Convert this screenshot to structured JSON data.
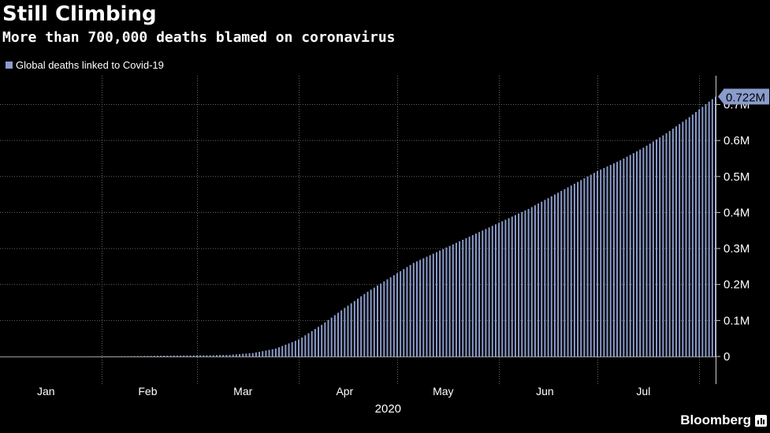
{
  "header": {
    "title": "Still Climbing",
    "subtitle": "More than 700,000 deaths blamed on coronavirus"
  },
  "colors": {
    "bar": "#8a9ccc",
    "grid": "#666666",
    "text": "#ffffff",
    "background": "#000000"
  },
  "chart_data": {
    "type": "bar",
    "title": "Still Climbing",
    "subtitle": "More than 700,000 deaths blamed on coronavirus",
    "xlabel": "2020",
    "ylabel": "",
    "y_axis_side": "right",
    "ylim": [
      0,
      0.78
    ],
    "y_unit": "M",
    "grid": true,
    "legend": {
      "position": "top-left",
      "entries": [
        "Global deaths linked to Covid-19"
      ]
    },
    "x_range": [
      "2020-01-01",
      "2020-08-06"
    ],
    "x_tick_labels": [
      {
        "label": "Jan",
        "date": "2020-01-15"
      },
      {
        "label": "Feb",
        "date": "2020-02-15"
      },
      {
        "label": "Mar",
        "date": "2020-03-15"
      },
      {
        "label": "Apr",
        "date": "2020-04-15"
      },
      {
        "label": "May",
        "date": "2020-05-15"
      },
      {
        "label": "Jun",
        "date": "2020-06-15"
      },
      {
        "label": "Jul",
        "date": "2020-07-15"
      }
    ],
    "x_gridlines": [
      "2020-02-01",
      "2020-03-01",
      "2020-04-01",
      "2020-05-01",
      "2020-06-01",
      "2020-07-01",
      "2020-08-01"
    ],
    "y_ticks": [
      {
        "value": 0,
        "label": "0"
      },
      {
        "value": 0.1,
        "label": "0.1M"
      },
      {
        "value": 0.2,
        "label": "0.2M"
      },
      {
        "value": 0.3,
        "label": "0.3M"
      },
      {
        "value": 0.4,
        "label": "0.4M"
      },
      {
        "value": 0.5,
        "label": "0.5M"
      },
      {
        "value": 0.6,
        "label": "0.6M"
      },
      {
        "value": 0.7,
        "label": "0.7M"
      }
    ],
    "last_value_label": "0.722M",
    "series": [
      {
        "name": "Global deaths linked to Covid-19",
        "color": "#8a9ccc",
        "points": [
          [
            "2020-01-22",
            0.0
          ],
          [
            "2020-01-29",
            0.0001
          ],
          [
            "2020-02-05",
            0.0006
          ],
          [
            "2020-02-12",
            0.0011
          ],
          [
            "2020-02-19",
            0.0021
          ],
          [
            "2020-02-26",
            0.0028
          ],
          [
            "2020-03-04",
            0.0033
          ],
          [
            "2020-03-11",
            0.0045
          ],
          [
            "2020-03-18",
            0.0095
          ],
          [
            "2020-03-25",
            0.022
          ],
          [
            "2020-04-01",
            0.047
          ],
          [
            "2020-04-08",
            0.088
          ],
          [
            "2020-04-15",
            0.135
          ],
          [
            "2020-04-22",
            0.18
          ],
          [
            "2020-04-29",
            0.22
          ],
          [
            "2020-05-06",
            0.26
          ],
          [
            "2020-05-13",
            0.29
          ],
          [
            "2020-05-20",
            0.32
          ],
          [
            "2020-05-27",
            0.35
          ],
          [
            "2020-06-03",
            0.38
          ],
          [
            "2020-06-10",
            0.41
          ],
          [
            "2020-06-17",
            0.445
          ],
          [
            "2020-06-24",
            0.48
          ],
          [
            "2020-07-01",
            0.515
          ],
          [
            "2020-07-08",
            0.545
          ],
          [
            "2020-07-15",
            0.58
          ],
          [
            "2020-07-22",
            0.62
          ],
          [
            "2020-07-29",
            0.665
          ],
          [
            "2020-08-05",
            0.715
          ],
          [
            "2020-08-06",
            0.722
          ]
        ]
      }
    ]
  },
  "footer": {
    "brand": "Bloomberg"
  }
}
